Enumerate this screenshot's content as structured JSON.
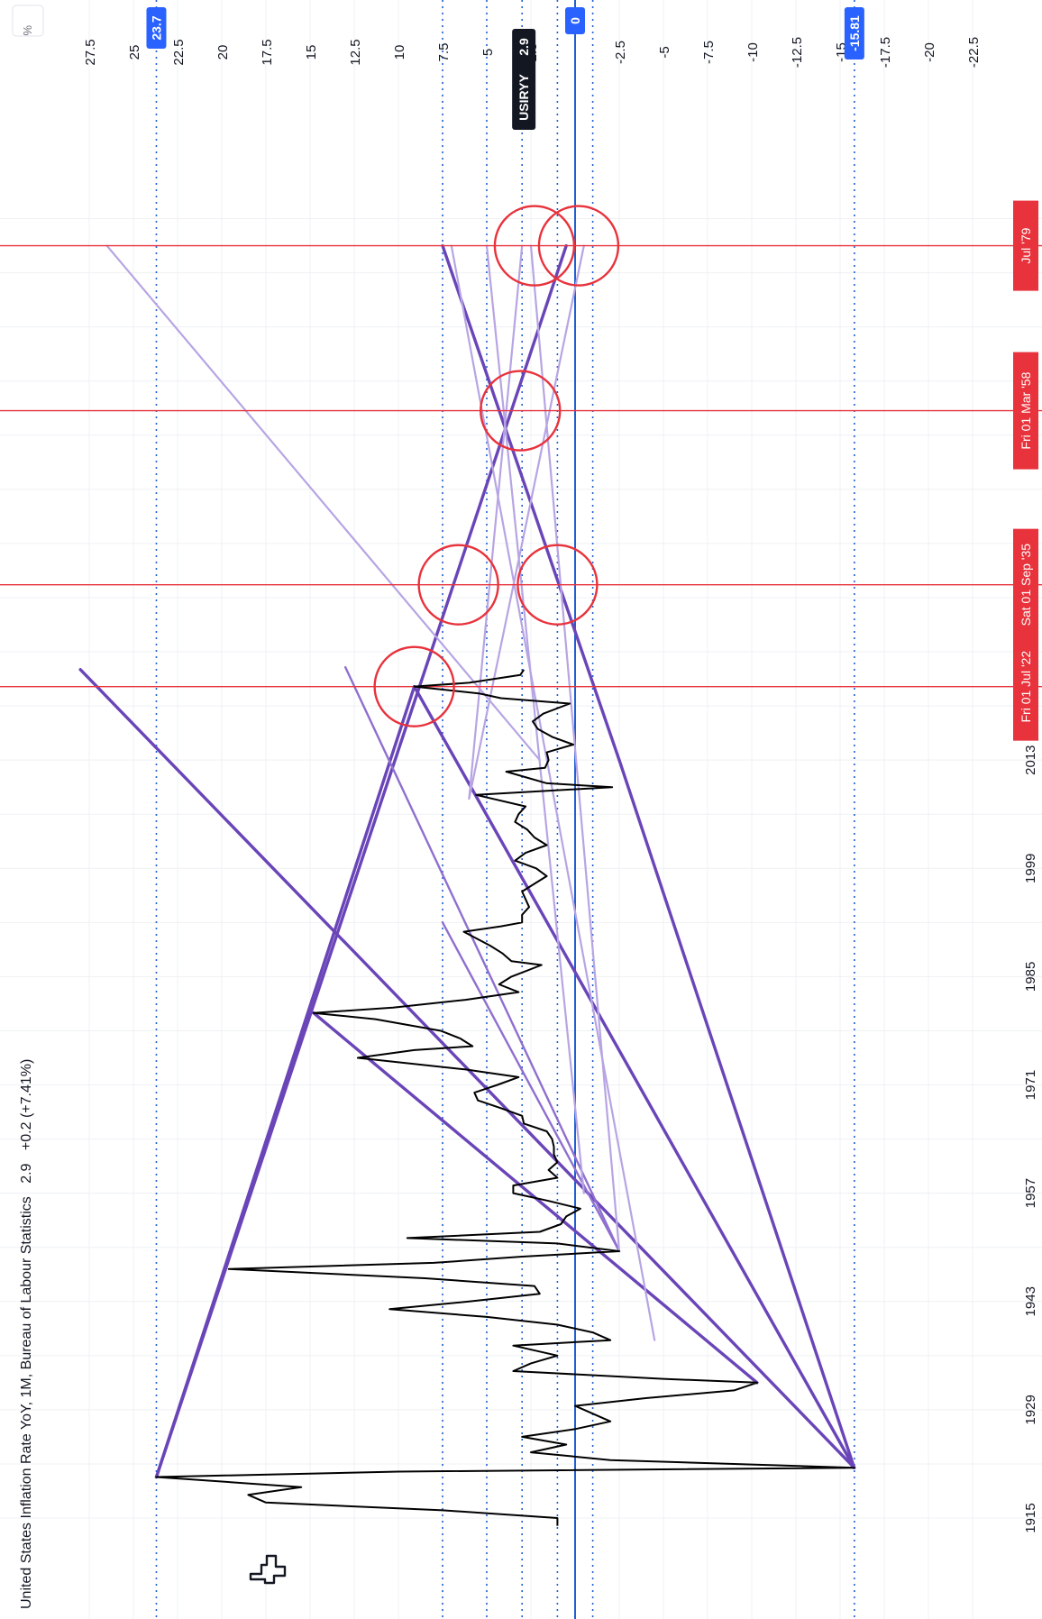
{
  "header": {
    "symbol_title": "United States Inflation Rate YoY, 1M, Bureau of Labour Statistics",
    "last_value": "2.9",
    "change": "+0.2 (+7.41%)"
  },
  "axis": {
    "unit_label": "%",
    "value_ticks": [
      "27.5",
      "25",
      "22.5",
      "20",
      "17.5",
      "15",
      "12.5",
      "10",
      "7.5",
      "5",
      "2.5",
      "0",
      "-2.5",
      "-5",
      "-7.5",
      "-10",
      "-12.5",
      "-15",
      "-17.5",
      "-20",
      "-22.5"
    ],
    "year_ticks": [
      "1915",
      "1929",
      "1943",
      "1957",
      "1971",
      "1985",
      "1999",
      "2013"
    ]
  },
  "badges": {
    "symbol": "USIRYY",
    "last": "2.9",
    "high": "23.7",
    "zero": "0",
    "low": "-15.81"
  },
  "date_markers": [
    {
      "label": "Fri 01 Jul '22",
      "year": 2022.5
    },
    {
      "label": "Sat 01 Sep '35",
      "year": 2035.67
    },
    {
      "label": "Fri 01 Mar '58",
      "year": 2058.17
    },
    {
      "label": "Jul '79",
      "year": 2079.5
    }
  ],
  "colors": {
    "series": "#000000",
    "trend_dark": "#6a45b8",
    "trend_mid": "#8f6fcf",
    "trend_light": "#b7a5e3",
    "marker": "#e8323c",
    "level": "#1f5fd1",
    "badge_blue": "#2962ff",
    "badge_black": "#131722",
    "grid": "#eef0f3"
  },
  "chart_data": {
    "type": "line",
    "title": "United States Inflation Rate YoY, 1M, Bureau of Labour Statistics",
    "ylabel": "%",
    "xlim": [
      1910,
      2085
    ],
    "ylim": [
      -25,
      30
    ],
    "grid": true,
    "series": [
      {
        "name": "USIRYY",
        "x": [
          1914.0,
          1915.0,
          1916.0,
          1917.0,
          1918.0,
          1919.0,
          1920.3,
          1921.0,
          1921.5,
          1922.5,
          1923.5,
          1924.5,
          1925.5,
          1926.5,
          1927.5,
          1928.5,
          1929.5,
          1930.5,
          1931.5,
          1932.5,
          1933.0,
          1934.0,
          1935.0,
          1936.0,
          1937.3,
          1938.0,
          1939.0,
          1940.0,
          1941.0,
          1942.0,
          1943.0,
          1944.0,
          1945.0,
          1946.0,
          1947.2,
          1948.0,
          1948.8,
          1949.5,
          1950.5,
          1951.2,
          1952.0,
          1953.0,
          1954.0,
          1955.0,
          1956.0,
          1957.0,
          1958.0,
          1959.0,
          1960.0,
          1961.0,
          1962.0,
          1963.0,
          1964.0,
          1965.0,
          1966.0,
          1967.0,
          1968.0,
          1969.0,
          1970.0,
          1971.0,
          1972.0,
          1973.0,
          1974.5,
          1975.5,
          1976.0,
          1977.0,
          1978.0,
          1979.5,
          1980.3,
          1981.0,
          1982.0,
          1983.0,
          1984.0,
          1985.0,
          1986.5,
          1987.0,
          1988.0,
          1989.0,
          1990.8,
          1991.5,
          1992.0,
          1993.0,
          1994.0,
          1995.0,
          1996.0,
          1997.0,
          1998.0,
          1999.0,
          2000.0,
          2001.0,
          2002.0,
          2003.0,
          2004.0,
          2005.0,
          2006.0,
          2007.0,
          2008.5,
          2009.5,
          2010.0,
          2011.5,
          2012.0,
          2013.0,
          2014.0,
          2015.0,
          2016.0,
          2017.0,
          2018.0,
          2019.0,
          2020.3,
          2021.0,
          2021.6,
          2022.5,
          2023.0,
          2024.0,
          2024.7
        ],
        "values": [
          1.0,
          1.0,
          7.5,
          17.5,
          18.5,
          15.5,
          23.7,
          10.0,
          -15.8,
          -2.0,
          2.5,
          0.5,
          3.0,
          0.0,
          -2.0,
          -1.0,
          0.0,
          -4.0,
          -9.0,
          -10.3,
          -5.0,
          3.5,
          2.5,
          1.0,
          3.5,
          -2.0,
          -1.0,
          1.0,
          5.0,
          10.5,
          6.0,
          2.0,
          2.3,
          8.5,
          19.6,
          8.0,
          3.0,
          -2.5,
          1.0,
          9.5,
          2.0,
          0.8,
          0.5,
          -0.3,
          1.5,
          3.5,
          3.5,
          1.0,
          1.5,
          1.0,
          1.2,
          1.2,
          1.3,
          1.6,
          2.9,
          3.0,
          4.2,
          5.5,
          5.7,
          4.4,
          3.2,
          6.2,
          12.3,
          9.1,
          5.8,
          6.5,
          7.6,
          11.3,
          14.8,
          10.3,
          6.2,
          3.2,
          4.3,
          3.6,
          1.9,
          3.6,
          4.1,
          4.8,
          6.3,
          4.2,
          3.0,
          3.0,
          2.6,
          2.8,
          3.0,
          2.3,
          1.6,
          2.2,
          3.4,
          2.8,
          1.6,
          2.3,
          2.7,
          3.4,
          3.2,
          2.8,
          5.6,
          -2.1,
          1.6,
          3.9,
          1.7,
          1.5,
          1.6,
          0.1,
          1.3,
          2.1,
          2.4,
          1.8,
          0.3,
          4.2,
          5.4,
          9.1,
          6.0,
          3.1,
          2.9
        ]
      }
    ],
    "horizontal_levels": [
      23.7,
      7.5,
      5.0,
      3.0,
      1.0,
      0.0,
      -1.0,
      -15.81
    ],
    "trend_lines": [
      {
        "from": [
          1920.3,
          23.7
        ],
        "to": [
          2022.5,
          9.1
        ],
        "weight": "dark"
      },
      {
        "from": [
          1920.3,
          23.7
        ],
        "to": [
          2079.5,
          0.5
        ],
        "weight": "dark"
      },
      {
        "from": [
          1921.5,
          -15.8
        ],
        "to": [
          2024.7,
          28.0
        ],
        "weight": "dark"
      },
      {
        "from": [
          1921.5,
          -15.8
        ],
        "to": [
          2022.5,
          9.1
        ],
        "weight": "dark"
      },
      {
        "from": [
          1921.5,
          -15.8
        ],
        "to": [
          2013.0,
          -2.5
        ],
        "weight": "dark"
      },
      {
        "from": [
          2013.0,
          -2.5
        ],
        "to": [
          2079.5,
          7.5
        ],
        "weight": "dark"
      },
      {
        "from": [
          1932.5,
          -10.3
        ],
        "to": [
          1980.3,
          14.8
        ],
        "weight": "dark"
      },
      {
        "from": [
          1949.5,
          -2.5
        ],
        "to": [
          2025.0,
          13.0
        ],
        "weight": "mid"
      },
      {
        "from": [
          1949.5,
          -2.5
        ],
        "to": [
          1992.0,
          7.5
        ],
        "weight": "mid"
      },
      {
        "from": [
          1949.5,
          -2.5
        ],
        "to": [
          2079.5,
          2.5
        ],
        "weight": "light"
      },
      {
        "from": [
          1938.0,
          -4.5
        ],
        "to": [
          2079.5,
          7.0
        ],
        "weight": "light"
      },
      {
        "from": [
          2008.0,
          6.0
        ],
        "to": [
          2079.5,
          3.0
        ],
        "weight": "light"
      },
      {
        "from": [
          2008.0,
          6.0
        ],
        "to": [
          2079.5,
          -0.5
        ],
        "weight": "light"
      },
      {
        "from": [
          1957.0,
          -0.5
        ],
        "to": [
          2079.5,
          5.0
        ],
        "weight": "light"
      },
      {
        "from": [
          2013.0,
          2.0
        ],
        "to": [
          2079.5,
          26.5
        ],
        "weight": "light"
      }
    ],
    "date_markers": [
      2022.5,
      2035.67,
      2058.17,
      2079.5
    ],
    "highlight_circles": [
      {
        "x": 2022.5,
        "y": 9.1
      },
      {
        "x": 2035.67,
        "y": 6.6
      },
      {
        "x": 2035.67,
        "y": 1.0
      },
      {
        "x": 2058.17,
        "y": 3.1
      },
      {
        "x": 2079.5,
        "y": 2.3
      },
      {
        "x": 2079.5,
        "y": -0.2
      }
    ]
  }
}
